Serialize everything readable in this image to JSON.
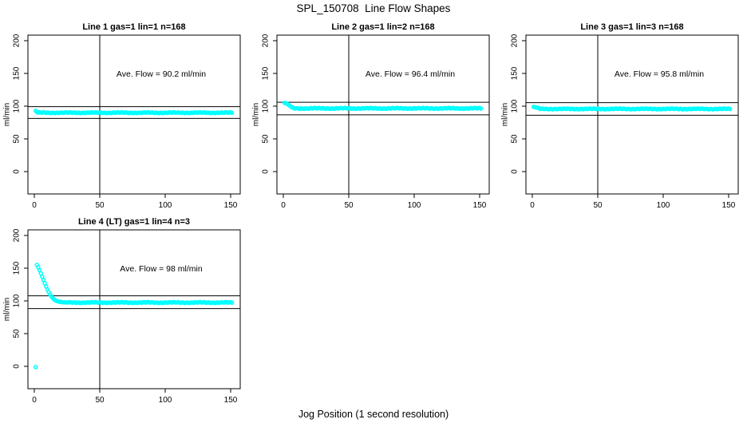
{
  "chart_data": {
    "type": "scatter",
    "suptitle": "SPL_150708  Line Flow Shapes",
    "xlabel": "Jog Position (1 second resolution)",
    "ylabel": "ml/min",
    "x_ticks": [
      0,
      50,
      100,
      150
    ],
    "y_ticks": [
      0,
      50,
      100,
      150,
      200
    ],
    "xlim": [
      -5,
      157
    ],
    "ylim": [
      -34,
      208
    ],
    "grid": false,
    "marker": {
      "shape": "open-circle",
      "color": "#00FFFF"
    },
    "axis_color": "#000000",
    "panels": [
      {
        "title": "Line 1 gas=1 lin=1 n=168",
        "annotation": "Ave. Flow =  90.2  ml/min",
        "ave_flow_ml_min": 90.2,
        "ref_line_upper": 99.2,
        "ref_line_lower": 81.2,
        "ref_line_vertical_x": 50,
        "transient_points": [
          [
            1,
            93
          ],
          [
            2,
            91
          ]
        ],
        "steady_points": {
          "x_from": 3,
          "x_to": 151,
          "x_step": 1,
          "y": 90
        }
      },
      {
        "title": "Line 2 gas=1 lin=2 n=168",
        "annotation": "Ave. Flow =  96.4  ml/min",
        "ave_flow_ml_min": 96.4,
        "ref_line_upper": 106.0,
        "ref_line_lower": 86.8,
        "ref_line_vertical_x": 50,
        "transient_points": [
          [
            1,
            105
          ],
          [
            2,
            104.5
          ],
          [
            3,
            103.5
          ],
          [
            4,
            102
          ],
          [
            5,
            100.5
          ],
          [
            6,
            99
          ],
          [
            7,
            98
          ]
        ],
        "steady_points": {
          "x_from": 8,
          "x_to": 151,
          "x_step": 1,
          "y": 96.6
        }
      },
      {
        "title": "Line 3 gas=1 lin=3 n=168",
        "annotation": "Ave. Flow =  95.8  ml/min",
        "ave_flow_ml_min": 95.8,
        "ref_line_upper": 105.4,
        "ref_line_lower": 86.2,
        "ref_line_vertical_x": 50,
        "transient_points": [
          [
            1,
            99
          ],
          [
            2,
            98.5
          ],
          [
            3,
            98
          ],
          [
            4,
            97.5
          ],
          [
            5,
            97
          ]
        ],
        "steady_points": {
          "x_from": 6,
          "x_to": 151,
          "x_step": 1,
          "y": 95.8
        }
      },
      {
        "title": "Line 4 (LT) gas=1 lin=4 n=3",
        "annotation": "Ave. Flow =  98  ml/min",
        "ave_flow_ml_min": 98,
        "ref_line_upper": 107.8,
        "ref_line_lower": 88.2,
        "ref_line_vertical_x": 50,
        "transient_points": [
          [
            1,
            -1
          ],
          [
            2,
            155
          ],
          [
            3,
            151.5
          ],
          [
            4,
            147
          ],
          [
            5,
            142
          ],
          [
            6,
            137
          ],
          [
            7,
            132
          ],
          [
            8,
            127
          ],
          [
            9,
            122
          ],
          [
            10,
            117.5
          ],
          [
            11,
            113.5
          ],
          [
            12,
            110
          ],
          [
            13,
            107
          ],
          [
            14,
            104.5
          ],
          [
            15,
            102.5
          ],
          [
            16,
            101
          ],
          [
            17,
            100
          ],
          [
            18,
            99.3
          ],
          [
            19,
            98.8
          ],
          [
            20,
            98.4
          ],
          [
            21,
            98.1
          ],
          [
            22,
            97.9
          ],
          [
            23,
            97.8
          ],
          [
            24,
            97.7
          ]
        ],
        "steady_points": {
          "x_from": 25,
          "x_to": 151,
          "x_step": 1,
          "y": 97.5
        }
      }
    ]
  }
}
